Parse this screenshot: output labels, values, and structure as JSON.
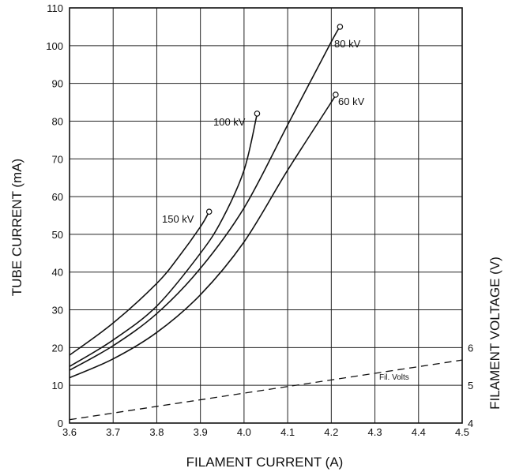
{
  "chart_data": {
    "type": "line",
    "xlabel": "FILAMENT CURRENT (A)",
    "ylabel": "TUBE CURRENT (mA)",
    "y2label": "FILAMENT VOLTAGE (V)",
    "xlim": [
      3.6,
      4.5
    ],
    "ylim": [
      0,
      110
    ],
    "y2lim": [
      4,
      6
    ],
    "grid": true,
    "x_ticks": [
      "3.6",
      "3.7",
      "3.8",
      "3.9",
      "4.0",
      "4.1",
      "4.2",
      "4.3",
      "4.4",
      "4.5"
    ],
    "y_ticks": [
      "0",
      "10",
      "20",
      "30",
      "40",
      "50",
      "60",
      "70",
      "80",
      "90",
      "100",
      "110"
    ],
    "y2_ticks": [
      "4",
      "5",
      "6"
    ],
    "series": [
      {
        "name": "150 kV",
        "x": [
          3.6,
          3.7,
          3.8,
          3.85,
          3.9,
          3.92
        ],
        "y": [
          18,
          26.5,
          37,
          44,
          52,
          56
        ]
      },
      {
        "name": "100 kV",
        "x": [
          3.6,
          3.7,
          3.8,
          3.9,
          3.95,
          4.0,
          4.03
        ],
        "y": [
          15,
          22,
          31,
          45,
          54,
          67,
          82
        ]
      },
      {
        "name": "80 kV",
        "x": [
          3.6,
          3.7,
          3.8,
          3.9,
          4.0,
          4.1,
          4.2,
          4.22
        ],
        "y": [
          14,
          20.5,
          29,
          41,
          57,
          79,
          101,
          105
        ]
      },
      {
        "name": "60 kV",
        "x": [
          3.6,
          3.7,
          3.8,
          3.9,
          4.0,
          4.1,
          4.2,
          4.21
        ],
        "y": [
          12,
          17,
          24,
          34,
          48,
          67,
          85,
          87
        ]
      },
      {
        "name": "Fil. Volts",
        "style": "dashed",
        "axis": "right",
        "x": [
          3.6,
          4.5
        ],
        "y": [
          4.09,
          5.67
        ]
      }
    ]
  }
}
